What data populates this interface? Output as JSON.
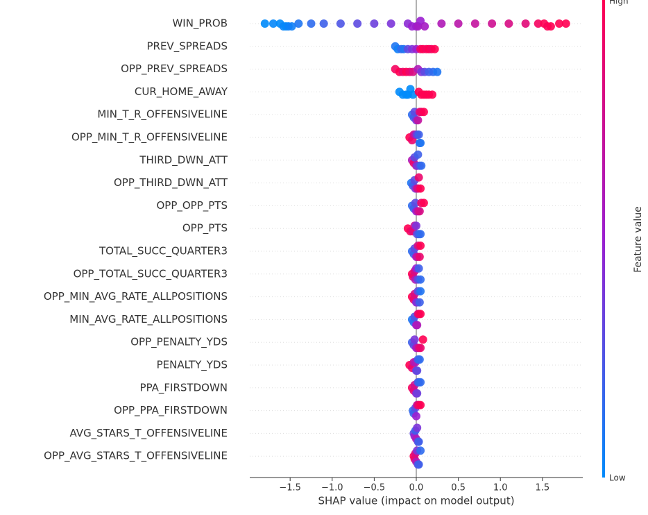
{
  "chart_data": {
    "type": "beeswarm",
    "xlabel": "SHAP value (impact on model output)",
    "colorbar_label": "Feature value",
    "colorbar_high": "High",
    "colorbar_low": "Low",
    "colormap": [
      "#008bfb",
      "#9b1fd0",
      "#ff0052"
    ],
    "xlim": [
      -1.98,
      1.98
    ],
    "xticks": [
      {
        "value": -1.5,
        "label": "−1.5"
      },
      {
        "value": -1.0,
        "label": "−1.0"
      },
      {
        "value": -0.5,
        "label": "−0.5"
      },
      {
        "value": 0.0,
        "label": "0.0"
      },
      {
        "value": 0.5,
        "label": "0.5"
      },
      {
        "value": 1.0,
        "label": "1.0"
      },
      {
        "value": 1.5,
        "label": "1.5"
      }
    ],
    "grid": true,
    "series": [
      {
        "name": "WIN_PROB",
        "shap": [
          -1.8,
          -1.7,
          -1.62,
          -1.58,
          -1.55,
          -1.52,
          -1.48,
          -1.4,
          -1.25,
          -1.1,
          -0.9,
          -0.7,
          -0.5,
          -0.3,
          -0.1,
          -0.05,
          0,
          0.02,
          0.05,
          0.1,
          0.3,
          0.5,
          0.7,
          0.9,
          1.1,
          1.3,
          1.45,
          1.52,
          1.56,
          1.6,
          1.7,
          1.78
        ],
        "feature_value": [
          0,
          0.02,
          0,
          0.03,
          0.01,
          0.04,
          0.05,
          0.1,
          0.15,
          0.2,
          0.25,
          0.3,
          0.35,
          0.4,
          0.45,
          0.5,
          0.5,
          0.55,
          0.5,
          0.55,
          0.6,
          0.65,
          0.7,
          0.75,
          0.8,
          0.85,
          0.95,
          1,
          0.98,
          1,
          1,
          1
        ]
      },
      {
        "name": "PREV_SPREADS",
        "shap": [
          -0.25,
          -0.22,
          -0.18,
          -0.15,
          -0.1,
          -0.05,
          0,
          0.05,
          0.08,
          0.12,
          0.15,
          0.18,
          0.22
        ],
        "feature_value": [
          0.1,
          0.05,
          0.15,
          0.1,
          0.3,
          0.4,
          0.5,
          0.9,
          1,
          0.95,
          1,
          0.95,
          1
        ]
      },
      {
        "name": "OPP_PREV_SPREADS",
        "shap": [
          -0.25,
          -0.2,
          -0.16,
          -0.12,
          -0.08,
          -0.04,
          0.02,
          0.06,
          0.1,
          0.15,
          0.2,
          0.25
        ],
        "feature_value": [
          0.95,
          1,
          0.9,
          1,
          0.9,
          0.8,
          0.6,
          0.4,
          0.3,
          0.2,
          0.15,
          0.1
        ]
      },
      {
        "name": "CUR_HOME_AWAY",
        "shap": [
          -0.2,
          -0.16,
          -0.12,
          -0.1,
          -0.07,
          -0.04,
          0.03,
          0.06,
          0.09,
          0.12,
          0.15,
          0.19
        ],
        "feature_value": [
          0,
          0,
          0,
          0,
          0,
          0,
          1,
          1,
          1,
          1,
          1,
          1
        ]
      },
      {
        "name": "MIN_T_R_OFFENSIVELINE",
        "shap": [
          -0.05,
          -0.03,
          -0.02,
          0,
          0.02,
          0.04,
          0.06,
          0.09
        ],
        "feature_value": [
          0.15,
          0.2,
          0.3,
          0.4,
          0.7,
          0.85,
          0.9,
          1
        ]
      },
      {
        "name": "OPP_MIN_T_R_OFFENSIVELINE",
        "shap": [
          -0.08,
          -0.05,
          -0.03,
          -0.01,
          0.01,
          0.03,
          0.04,
          0.05
        ],
        "feature_value": [
          1,
          0.9,
          0.8,
          0.6,
          0.3,
          0.2,
          0.15,
          0.1
        ]
      },
      {
        "name": "THIRD_DWN_ATT",
        "shap": [
          -0.05,
          -0.03,
          -0.02,
          0,
          0.01,
          0.02,
          0.04,
          0.06
        ],
        "feature_value": [
          0.6,
          0.9,
          0.3,
          0.7,
          0.4,
          0.2,
          0.3,
          0.15
        ]
      },
      {
        "name": "OPP_THIRD_DWN_ATT",
        "shap": [
          -0.06,
          -0.04,
          -0.02,
          -0.01,
          0.01,
          0.02,
          0.03,
          0.05
        ],
        "feature_value": [
          0.1,
          0.2,
          0.3,
          0.4,
          0.7,
          0.8,
          0.9,
          1
        ]
      },
      {
        "name": "OPP_OPP_PTS",
        "shap": [
          -0.05,
          -0.03,
          -0.01,
          0,
          0.02,
          0.04,
          0.06,
          0.09
        ],
        "feature_value": [
          0.15,
          0.2,
          0.3,
          0.5,
          0.7,
          0.8,
          0.9,
          1
        ]
      },
      {
        "name": "OPP_PTS",
        "shap": [
          -0.1,
          -0.07,
          -0.04,
          -0.02,
          0,
          0.01,
          0.03,
          0.05
        ],
        "feature_value": [
          1,
          0.95,
          0.85,
          0.7,
          0.4,
          0.3,
          0.2,
          0.15
        ]
      },
      {
        "name": "TOTAL_SUCC_QUARTER3",
        "shap": [
          -0.05,
          -0.03,
          -0.02,
          0,
          0.01,
          0.02,
          0.04,
          0.05
        ],
        "feature_value": [
          0.15,
          0.2,
          0.3,
          0.5,
          0.7,
          0.8,
          0.9,
          1
        ]
      },
      {
        "name": "OPP_TOTAL_SUCC_QUARTER3",
        "shap": [
          -0.05,
          -0.04,
          -0.02,
          -0.01,
          0,
          0.02,
          0.03,
          0.05
        ],
        "feature_value": [
          1,
          0.9,
          0.8,
          0.6,
          0.5,
          0.3,
          0.2,
          0.15
        ]
      },
      {
        "name": "OPP_MIN_AVG_RATE_ALLPOSITIONS",
        "shap": [
          -0.05,
          -0.03,
          -0.02,
          0,
          0.01,
          0.02,
          0.04,
          0.05
        ],
        "feature_value": [
          1,
          0.9,
          0.8,
          0.5,
          0.4,
          0.3,
          0.2,
          0.1
        ]
      },
      {
        "name": "MIN_AVG_RATE_ALLPOSITIONS",
        "shap": [
          -0.05,
          -0.03,
          -0.02,
          0,
          0.01,
          0.02,
          0.03,
          0.05
        ],
        "feature_value": [
          0.1,
          0.15,
          0.25,
          0.5,
          0.6,
          0.8,
          0.9,
          1
        ]
      },
      {
        "name": "OPP_PENALTY_YDS",
        "shap": [
          -0.05,
          -0.03,
          -0.02,
          0,
          0.01,
          0.03,
          0.05,
          0.08
        ],
        "feature_value": [
          0.2,
          0.3,
          0.4,
          0.5,
          0.6,
          0.8,
          0.9,
          1
        ]
      },
      {
        "name": "PENALTY_YDS",
        "shap": [
          -0.08,
          -0.05,
          -0.03,
          -0.01,
          0,
          0.01,
          0.02,
          0.04
        ],
        "feature_value": [
          1,
          0.9,
          0.7,
          0.6,
          0.4,
          0.3,
          0.2,
          0.15
        ]
      },
      {
        "name": "PPA_FIRSTDOWN",
        "shap": [
          -0.05,
          -0.03,
          -0.02,
          0,
          0.01,
          0.02,
          0.03,
          0.05
        ],
        "feature_value": [
          0.95,
          0.85,
          0.75,
          0.5,
          0.35,
          0.25,
          0.2,
          0.15
        ]
      },
      {
        "name": "OPP_PPA_FIRSTDOWN",
        "shap": [
          -0.04,
          -0.03,
          -0.01,
          0,
          0.01,
          0.02,
          0.03,
          0.05
        ],
        "feature_value": [
          0.15,
          0.2,
          0.3,
          0.5,
          0.7,
          0.8,
          0.9,
          1
        ]
      },
      {
        "name": "AVG_STARS_T_OFFENSIVELINE",
        "shap": [
          -0.03,
          -0.02,
          -0.01,
          0,
          0.01,
          0.02,
          0.03
        ],
        "feature_value": [
          0.3,
          0.5,
          0.2,
          0.6,
          0.4,
          0.3,
          0.2
        ]
      },
      {
        "name": "OPP_AVG_STARS_T_OFFENSIVELINE",
        "shap": [
          -0.03,
          -0.02,
          -0.01,
          0,
          0.01,
          0.02,
          0.03,
          0.05
        ],
        "feature_value": [
          1,
          0.9,
          0.8,
          0.6,
          0.4,
          0.3,
          0.2,
          0.15
        ]
      }
    ]
  }
}
